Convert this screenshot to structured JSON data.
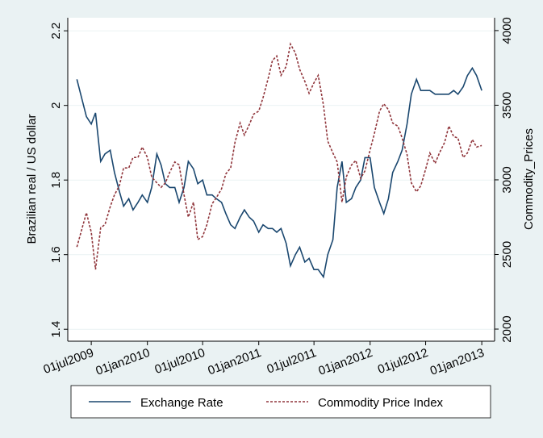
{
  "chart_data": {
    "type": "line",
    "y_label": "Brazilian real / US dollar",
    "y2_label": "Commodity_Prices",
    "x": [
      "2009-05-15",
      "2009-06-15",
      "2009-07-01",
      "2009-07-15",
      "2009-08-01",
      "2009-08-15",
      "2009-09-01",
      "2009-09-15",
      "2009-10-01",
      "2009-10-15",
      "2009-11-01",
      "2009-11-15",
      "2009-12-01",
      "2009-12-15",
      "2010-01-01",
      "2010-01-15",
      "2010-02-01",
      "2010-02-15",
      "2010-03-01",
      "2010-03-15",
      "2010-04-01",
      "2010-04-15",
      "2010-05-01",
      "2010-05-15",
      "2010-06-01",
      "2010-06-15",
      "2010-07-01",
      "2010-07-15",
      "2010-08-01",
      "2010-08-15",
      "2010-09-01",
      "2010-09-15",
      "2010-10-01",
      "2010-10-15",
      "2010-11-01",
      "2010-11-15",
      "2010-12-01",
      "2010-12-15",
      "2011-01-01",
      "2011-01-15",
      "2011-02-01",
      "2011-02-15",
      "2011-03-01",
      "2011-03-15",
      "2011-04-01",
      "2011-04-15",
      "2011-05-01",
      "2011-05-15",
      "2011-06-01",
      "2011-06-15",
      "2011-07-01",
      "2011-07-15",
      "2011-08-01",
      "2011-08-15",
      "2011-09-01",
      "2011-09-15",
      "2011-10-01",
      "2011-10-15",
      "2011-11-01",
      "2011-11-15",
      "2011-12-01",
      "2011-12-15",
      "2012-01-01",
      "2012-01-15",
      "2012-02-01",
      "2012-02-15",
      "2012-03-01",
      "2012-03-15",
      "2012-04-01",
      "2012-04-15",
      "2012-05-01",
      "2012-05-15",
      "2012-06-01",
      "2012-06-15",
      "2012-07-01",
      "2012-07-15",
      "2012-08-01",
      "2012-08-15",
      "2012-09-01",
      "2012-09-15",
      "2012-10-01",
      "2012-10-15",
      "2012-11-01",
      "2012-11-15",
      "2012-12-01",
      "2012-12-15",
      "2013-01-01"
    ],
    "series": [
      {
        "name": "Exchange Rate",
        "color": "#1a476f",
        "dash": false,
        "values": [
          2.07,
          1.97,
          1.95,
          1.98,
          1.85,
          1.87,
          1.88,
          1.82,
          1.77,
          1.73,
          1.75,
          1.72,
          1.74,
          1.76,
          1.74,
          1.78,
          1.87,
          1.84,
          1.79,
          1.78,
          1.78,
          1.74,
          1.78,
          1.85,
          1.83,
          1.79,
          1.8,
          1.76,
          1.76,
          1.75,
          1.74,
          1.71,
          1.68,
          1.67,
          1.7,
          1.72,
          1.7,
          1.69,
          1.66,
          1.68,
          1.67,
          1.67,
          1.66,
          1.67,
          1.63,
          1.57,
          1.6,
          1.62,
          1.58,
          1.59,
          1.56,
          1.56,
          1.54,
          1.6,
          1.64,
          1.78,
          1.85,
          1.74,
          1.75,
          1.78,
          1.8,
          1.86,
          1.86,
          1.78,
          1.74,
          1.71,
          1.75,
          1.82,
          1.85,
          1.88,
          1.95,
          2.03,
          2.07,
          2.04,
          2.04,
          2.04,
          2.03,
          2.03,
          2.03,
          2.03,
          2.04,
          2.03,
          2.05,
          2.08,
          2.1,
          2.08,
          2.04
        ]
      },
      {
        "name": "Commodity Price Index",
        "color": "#90353b",
        "dash": true,
        "axis": "y2",
        "values": [
          2550,
          2780,
          2650,
          2400,
          2680,
          2700,
          2820,
          2900,
          2960,
          3080,
          3080,
          3150,
          3150,
          3220,
          3150,
          3020,
          2980,
          2950,
          2980,
          3050,
          3120,
          3100,
          2900,
          2750,
          2850,
          2600,
          2620,
          2700,
          2840,
          2880,
          2940,
          3040,
          3080,
          3250,
          3380,
          3300,
          3370,
          3440,
          3460,
          3550,
          3680,
          3800,
          3830,
          3700,
          3760,
          3910,
          3850,
          3740,
          3660,
          3580,
          3650,
          3700,
          3500,
          3260,
          3180,
          3120,
          2850,
          3020,
          3100,
          3130,
          3010,
          3060,
          3200,
          3310,
          3460,
          3510,
          3470,
          3380,
          3360,
          3280,
          3170,
          2980,
          2920,
          2960,
          3070,
          3180,
          3110,
          3180,
          3250,
          3360,
          3290,
          3280,
          3150,
          3180,
          3270,
          3220,
          3230
        ]
      }
    ],
    "xlim": [
      "2009-04-15",
      "2013-02-12"
    ],
    "xticks": [
      {
        "value": "2009-07-01",
        "label": "01jul2009"
      },
      {
        "value": "2010-01-01",
        "label": "01jan2010"
      },
      {
        "value": "2010-07-01",
        "label": "01jul2010"
      },
      {
        "value": "2011-01-01",
        "label": "01jan2011"
      },
      {
        "value": "2011-07-01",
        "label": "01jul2011"
      },
      {
        "value": "2012-01-01",
        "label": "01jan2012"
      },
      {
        "value": "2012-07-01",
        "label": "01jul2012"
      },
      {
        "value": "2013-01-01",
        "label": "01jan2013"
      }
    ],
    "ylim": [
      1.368,
      2.235
    ],
    "yticks": [
      1.4,
      1.6,
      1.8,
      2,
      2.2
    ],
    "y2lim": [
      1919,
      4086
    ],
    "y2ticks": [
      2000,
      2500,
      3000,
      3500,
      4000
    ],
    "grid": true,
    "legend": "bottom"
  }
}
